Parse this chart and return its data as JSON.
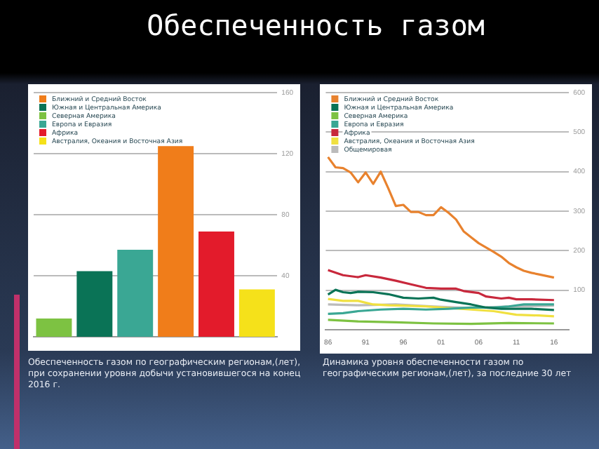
{
  "chart_data": [
    {
      "type": "bar",
      "title": "Обеспеченность газом",
      "annotations": [
        "Обеспеченность газом по географическим регионам,(лет), при сохранении уровня добычи установившегося на конец 2016 г."
      ],
      "categories": [
        null,
        null,
        null,
        null,
        null,
        null
      ],
      "stacked": true,
      "series": [
        {
          "name": "Ближний и Средний Восток",
          "color": "#f07d1a",
          "values": [
            null,
            null,
            null,
            125,
            null,
            null
          ]
        },
        {
          "name": "Южная и Центральная Америка",
          "color": "#0a7356",
          "values": [
            null,
            43,
            null,
            null,
            null,
            null
          ]
        },
        {
          "name": "Северная Америка",
          "color": "#7dc242",
          "values": [
            12,
            null,
            null,
            null,
            null,
            null
          ]
        },
        {
          "name": "Европа и Евразия",
          "color": "#3aa794",
          "values": [
            null,
            null,
            57,
            null,
            null,
            null
          ]
        },
        {
          "name": "Африка",
          "color": "#e31b2b",
          "values": [
            null,
            null,
            null,
            null,
            69,
            null
          ]
        },
        {
          "name": "Австралия, Океания и Восточная Азия",
          "color": "#f5e11a",
          "values": [
            null,
            null,
            null,
            null,
            null,
            31
          ]
        }
      ],
      "ylim": [
        0,
        160
      ],
      "yticks": [
        40,
        80,
        120,
        160
      ],
      "grid": "y",
      "legend": "top left",
      "tick_labels": "y"
    },
    {
      "type": "line",
      "annotations": [
        "Динамика уровня обеспеченности газом по географическим регионам,(лет), за последние 30 лет"
      ],
      "series": [
        {
          "name": "Ближний и Средний Восток",
          "color": "#e8822e",
          "x": [
            1986,
            1987,
            1988,
            1989,
            1990,
            1991,
            1992,
            1993,
            1994,
            1995,
            1996,
            1997,
            1998,
            1999,
            2000,
            2001,
            2002,
            2003,
            2004,
            2005,
            2006,
            2007,
            2008,
            2009,
            2010,
            2011,
            2012,
            2013,
            2014,
            2015,
            2016
          ],
          "values": [
            437,
            411,
            409,
            398,
            373,
            398,
            369,
            400,
            358,
            313,
            316,
            298,
            298,
            290,
            290,
            310,
            296,
            279,
            249,
            234,
            219,
            208,
            197,
            185,
            169,
            158,
            149,
            144,
            140,
            136,
            132
          ]
        },
        {
          "name": "Южная и Центральная Америка",
          "color": "#0a7356",
          "x": [
            1986,
            1987,
            1988,
            1989,
            1990,
            1992,
            1994,
            1996,
            1998,
            2000,
            2001,
            2003,
            2005,
            2007,
            2009,
            2011,
            2013,
            2016
          ],
          "values": [
            89,
            101,
            95,
            93,
            96,
            95,
            90,
            81,
            79,
            81,
            76,
            70,
            64,
            56,
            53,
            53,
            53,
            50
          ]
        },
        {
          "name": "Северная Америка",
          "color": "#7dc242",
          "x": [
            1986,
            1990,
            1995,
            2000,
            2005,
            2010,
            2016
          ],
          "values": [
            25,
            21,
            19,
            16,
            15,
            17,
            16
          ]
        },
        {
          "name": "Европа и Евразия",
          "color": "#3aa794",
          "x": [
            1986,
            1988,
            1990,
            1993,
            1996,
            1999,
            2002,
            2005,
            2008,
            2010,
            2012,
            2014,
            2016
          ],
          "values": [
            40,
            42,
            47,
            51,
            53,
            51,
            53,
            56,
            56,
            59,
            64,
            64,
            64
          ]
        },
        {
          "name": "Африка",
          "color": "#c8283c",
          "x": [
            1986,
            1988,
            1990,
            1991,
            1993,
            1995,
            1997,
            1999,
            2001,
            2003,
            2004,
            2006,
            2007,
            2009,
            2010,
            2011,
            2013,
            2016
          ],
          "values": [
            151,
            138,
            133,
            138,
            132,
            124,
            115,
            106,
            104,
            104,
            98,
            93,
            84,
            79,
            81,
            77,
            77,
            75
          ]
        },
        {
          "name": "Австралия, Океания и Восточная Азия",
          "color": "#f0e040",
          "x": [
            1986,
            1988,
            1990,
            1992,
            1994,
            1996,
            1999,
            2002,
            2005,
            2008,
            2011,
            2014,
            2016
          ],
          "values": [
            78,
            73,
            73,
            64,
            62,
            61,
            59,
            55,
            51,
            47,
            38,
            36,
            34
          ]
        },
        {
          "name": "Общемировая",
          "color": "#bbbbbb",
          "x": [
            1986,
            1990,
            1995,
            2000,
            2005,
            2010,
            2016
          ],
          "values": [
            64,
            62,
            64,
            59,
            55,
            59,
            61
          ]
        }
      ],
      "xlim": [
        1985.7,
        2018
      ],
      "xticks": [
        {
          "value": 1986,
          "label": "86"
        },
        {
          "value": 1991,
          "label": "91"
        },
        {
          "value": 1996,
          "label": "96"
        },
        {
          "value": 2001,
          "label": "01"
        },
        {
          "value": 2006,
          "label": "06"
        },
        {
          "value": 2011,
          "label": "11"
        },
        {
          "value": 2016,
          "label": "16"
        }
      ],
      "ylim": [
        0,
        600
      ],
      "yticks": [
        100,
        200,
        300,
        400,
        500,
        600
      ],
      "grid": "y",
      "legend": "top left",
      "marker": "none"
    }
  ]
}
